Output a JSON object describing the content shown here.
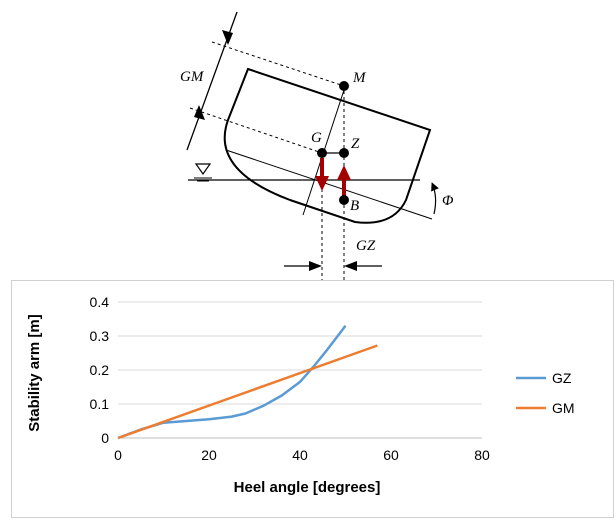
{
  "diagram": {
    "labels": {
      "gm": "GM",
      "m": "M",
      "g": "G",
      "z": "Z",
      "b": "B",
      "phi": "Φ",
      "gz": "GZ"
    },
    "colors": {
      "force_arrows": "#a50000"
    }
  },
  "chart_data": {
    "type": "line",
    "title": "",
    "xlabel": "Heel angle [degrees]",
    "ylabel": "Stability arm [m]",
    "xlim": [
      0,
      80
    ],
    "ylim": [
      0,
      0.4
    ],
    "xticks": [
      "0",
      "20",
      "40",
      "60",
      "80"
    ],
    "yticks": [
      "0",
      "0.1",
      "0.2",
      "0.3",
      "0.4"
    ],
    "grid": "horizontal",
    "legend": "right",
    "series": [
      {
        "name": "GZ",
        "color": "#5b9bd5",
        "x": [
          0,
          5,
          10,
          15,
          20,
          25,
          28,
          32,
          36,
          40,
          43,
          46,
          50
        ],
        "y": [
          0,
          0.025,
          0.045,
          0.05,
          0.055,
          0.063,
          0.072,
          0.095,
          0.125,
          0.165,
          0.21,
          0.26,
          0.33
        ]
      },
      {
        "name": "GM",
        "color": "#ed7d31",
        "x": [
          0,
          57
        ],
        "y": [
          0,
          0.272
        ]
      }
    ]
  }
}
